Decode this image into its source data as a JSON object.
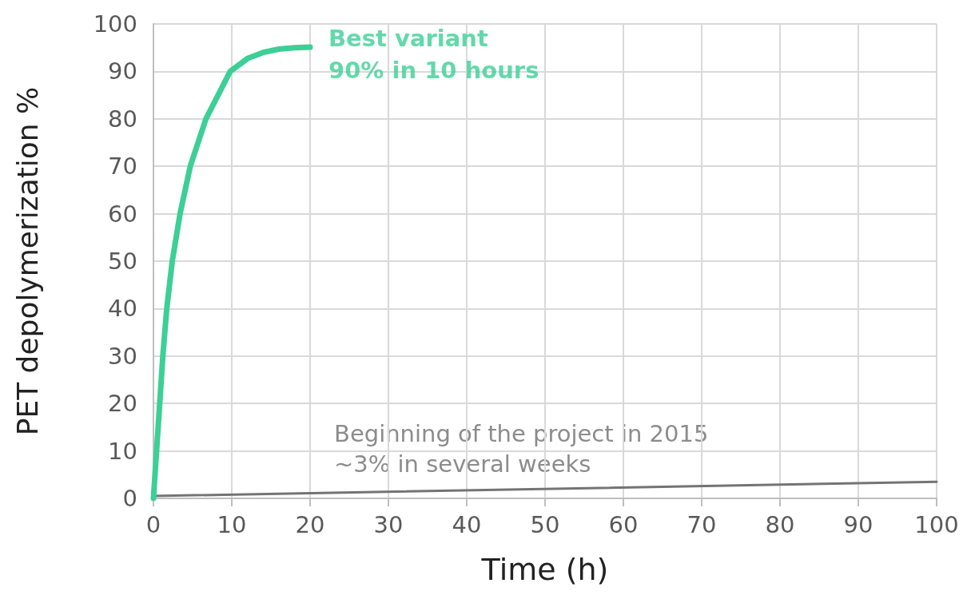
{
  "chart_data": {
    "type": "line",
    "xlabel": "Time (h)",
    "ylabel": "PET depolymerization %",
    "xlim": [
      0,
      100
    ],
    "xticks": [
      0,
      10,
      20,
      30,
      40,
      50,
      60,
      70,
      80,
      90,
      100
    ],
    "ylim": [
      0,
      100
    ],
    "yticks": [
      0,
      10,
      20,
      30,
      40,
      50,
      60,
      70,
      80,
      90,
      100
    ],
    "grid": true,
    "marker": "none",
    "line_style": "solid",
    "series": [
      {
        "color": "#3ccf96",
        "x": [
          0,
          0.4,
          0.8,
          1.2,
          1.7,
          2.4,
          3.4,
          4.7,
          6.7,
          9.8,
          12,
          14,
          16,
          18,
          20
        ],
        "values": [
          0,
          10,
          20,
          30,
          40,
          50,
          60,
          70,
          80,
          90,
          92.7,
          94,
          94.7,
          95,
          95.1
        ]
      },
      {
        "color": "#747474",
        "x": [
          0,
          100
        ],
        "values": [
          0.5,
          3.5
        ]
      }
    ],
    "annotations": [
      {
        "text": "Best variant\n90% in 10 hours",
        "x": 20,
        "y": 95
      },
      "Beginning of the project in 2015\n~3% in several weeks"
    ]
  }
}
